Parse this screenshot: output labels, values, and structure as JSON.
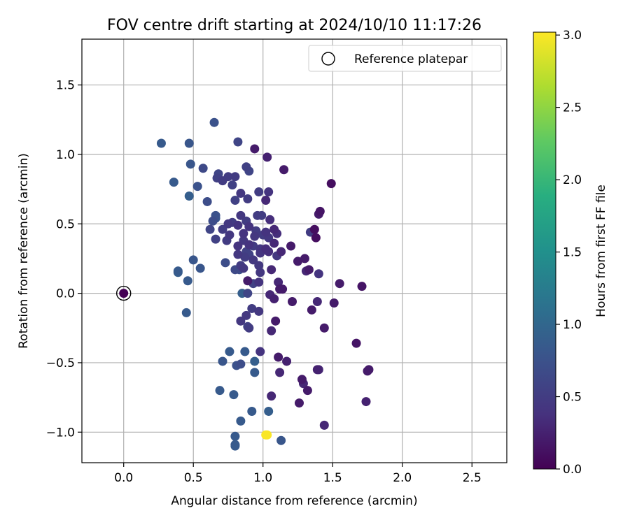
{
  "chart_data": {
    "type": "scatter",
    "title": "FOV centre drift starting at 2024/10/10 11:17:26",
    "xlabel": "Angular distance from reference (arcmin)",
    "ylabel": "Rotation from reference (arcmin)",
    "xlim": [
      -0.3,
      2.75
    ],
    "ylim": [
      -1.22,
      1.83
    ],
    "xticks": [
      "0.0",
      "0.5",
      "1.0",
      "1.5",
      "2.0",
      "2.5"
    ],
    "yticks": [
      "−1.0",
      "−0.5",
      "0.0",
      "0.5",
      "1.0",
      "1.5"
    ],
    "grid": true,
    "legend": {
      "location": "upper right",
      "entries": [
        {
          "label": "Reference platepar",
          "marker": "hollow-circle"
        }
      ]
    },
    "colorbar": {
      "label": "Hours from first FF file",
      "range": [
        0.0,
        3.02
      ],
      "ticks": [
        "0.0",
        "0.5",
        "1.0",
        "1.5",
        "2.0",
        "2.5",
        "3.0"
      ],
      "colormap": "viridis"
    },
    "reference_point": {
      "x": 0.0,
      "y": 0.0,
      "c": 0.0
    },
    "points": [
      [
        0.65,
        1.23,
        0.75
      ],
      [
        0.27,
        1.08,
        0.85
      ],
      [
        0.47,
        1.08,
        0.8
      ],
      [
        0.82,
        1.09,
        0.6
      ],
      [
        0.94,
        1.04,
        0.2
      ],
      [
        1.03,
        0.98,
        0.25
      ],
      [
        1.15,
        0.89,
        0.2
      ],
      [
        0.48,
        0.93,
        0.8
      ],
      [
        0.57,
        0.9,
        0.65
      ],
      [
        0.68,
        0.86,
        0.6
      ],
      [
        0.67,
        0.83,
        0.55
      ],
      [
        0.75,
        0.84,
        0.5
      ],
      [
        0.8,
        0.84,
        0.5
      ],
      [
        0.88,
        0.91,
        0.55
      ],
      [
        0.9,
        0.88,
        0.6
      ],
      [
        0.71,
        0.81,
        0.5
      ],
      [
        0.78,
        0.78,
        0.55
      ],
      [
        0.36,
        0.8,
        0.85
      ],
      [
        0.53,
        0.77,
        0.75
      ],
      [
        0.47,
        0.7,
        0.9
      ],
      [
        0.97,
        0.73,
        0.5
      ],
      [
        1.04,
        0.73,
        0.4
      ],
      [
        0.84,
        0.72,
        0.45
      ],
      [
        0.89,
        0.68,
        0.5
      ],
      [
        0.8,
        0.67,
        0.55
      ],
      [
        1.02,
        0.67,
        0.3
      ],
      [
        1.49,
        0.79,
        0.1
      ],
      [
        0.6,
        0.66,
        0.7
      ],
      [
        0.66,
        0.56,
        0.75
      ],
      [
        0.66,
        0.54,
        0.8
      ],
      [
        0.64,
        0.52,
        0.7
      ],
      [
        0.62,
        0.46,
        0.6
      ],
      [
        0.66,
        0.39,
        0.55
      ],
      [
        0.71,
        0.46,
        0.5
      ],
      [
        0.75,
        0.5,
        0.45
      ],
      [
        0.78,
        0.51,
        0.5
      ],
      [
        0.84,
        0.56,
        0.45
      ],
      [
        0.88,
        0.52,
        0.5
      ],
      [
        0.9,
        0.48,
        0.4
      ],
      [
        0.96,
        0.56,
        0.5
      ],
      [
        0.99,
        0.56,
        0.5
      ],
      [
        1.05,
        0.53,
        0.35
      ],
      [
        1.08,
        0.46,
        0.3
      ],
      [
        1.02,
        0.44,
        0.4
      ],
      [
        0.95,
        0.45,
        0.5
      ],
      [
        0.86,
        0.43,
        0.4
      ],
      [
        0.82,
        0.49,
        0.4
      ],
      [
        0.76,
        0.42,
        0.45
      ],
      [
        0.74,
        0.38,
        0.5
      ],
      [
        0.86,
        0.38,
        0.45
      ],
      [
        0.9,
        0.35,
        0.4
      ],
      [
        0.94,
        0.41,
        0.45
      ],
      [
        1.0,
        0.42,
        0.5
      ],
      [
        1.04,
        0.4,
        0.45
      ],
      [
        1.1,
        0.43,
        0.35
      ],
      [
        1.08,
        0.36,
        0.3
      ],
      [
        1.02,
        0.32,
        0.35
      ],
      [
        0.98,
        0.32,
        0.45
      ],
      [
        0.93,
        0.34,
        0.5
      ],
      [
        0.88,
        0.3,
        0.55
      ],
      [
        0.82,
        0.34,
        0.4
      ],
      [
        0.82,
        0.28,
        0.45
      ],
      [
        0.87,
        0.26,
        0.5
      ],
      [
        0.9,
        0.28,
        0.55
      ],
      [
        0.93,
        0.24,
        0.45
      ],
      [
        0.98,
        0.29,
        0.4
      ],
      [
        1.04,
        0.3,
        0.35
      ],
      [
        1.1,
        0.27,
        0.45
      ],
      [
        1.13,
        0.3,
        0.3
      ],
      [
        1.2,
        0.34,
        0.2
      ],
      [
        1.37,
        0.46,
        0.1
      ],
      [
        1.41,
        0.59,
        0.15
      ],
      [
        1.4,
        0.57,
        0.2
      ],
      [
        1.34,
        0.44,
        0.5
      ],
      [
        1.38,
        0.4,
        0.1
      ],
      [
        1.3,
        0.25,
        0.2
      ],
      [
        1.25,
        0.23,
        0.2
      ],
      [
        1.31,
        0.16,
        0.3
      ],
      [
        1.33,
        0.17,
        0.2
      ],
      [
        1.4,
        0.14,
        0.4
      ],
      [
        1.55,
        0.07,
        0.2
      ],
      [
        1.71,
        0.05,
        0.15
      ],
      [
        1.11,
        0.08,
        0.3
      ],
      [
        1.12,
        0.03,
        0.2
      ],
      [
        1.14,
        0.03,
        0.2
      ],
      [
        1.05,
        -0.01,
        0.3
      ],
      [
        1.08,
        -0.04,
        0.25
      ],
      [
        1.21,
        -0.06,
        0.2
      ],
      [
        1.39,
        -0.06,
        0.3
      ],
      [
        1.51,
        -0.07,
        0.2
      ],
      [
        0.73,
        0.22,
        0.7
      ],
      [
        0.8,
        0.17,
        0.65
      ],
      [
        0.83,
        0.17,
        0.7
      ],
      [
        0.84,
        0.2,
        0.5
      ],
      [
        0.86,
        0.18,
        0.45
      ],
      [
        0.97,
        0.2,
        0.45
      ],
      [
        0.98,
        0.15,
        0.45
      ],
      [
        1.06,
        0.17,
        0.3
      ],
      [
        0.5,
        0.24,
        0.8
      ],
      [
        0.55,
        0.18,
        0.8
      ],
      [
        0.39,
        0.16,
        0.85
      ],
      [
        0.39,
        0.15,
        0.9
      ],
      [
        0.46,
        0.09,
        0.85
      ],
      [
        0.93,
        0.07,
        0.55
      ],
      [
        0.89,
        0.09,
        0.2
      ],
      [
        0.97,
        0.08,
        0.4
      ],
      [
        0.85,
        0.0,
        0.9
      ],
      [
        0.89,
        0.0,
        0.6
      ],
      [
        0.92,
        -0.11,
        0.5
      ],
      [
        0.97,
        -0.13,
        0.45
      ],
      [
        0.88,
        -0.16,
        0.45
      ],
      [
        0.84,
        -0.2,
        0.45
      ],
      [
        0.89,
        -0.24,
        0.55
      ],
      [
        0.9,
        -0.25,
        0.5
      ],
      [
        1.06,
        -0.27,
        0.3
      ],
      [
        1.09,
        -0.2,
        0.2
      ],
      [
        1.35,
        -0.12,
        0.2
      ],
      [
        1.44,
        -0.25,
        0.2
      ],
      [
        1.67,
        -0.36,
        0.15
      ],
      [
        0.45,
        -0.14,
        0.85
      ],
      [
        0.76,
        -0.42,
        0.85
      ],
      [
        0.71,
        -0.49,
        0.8
      ],
      [
        0.81,
        -0.52,
        0.75
      ],
      [
        0.84,
        -0.51,
        0.7
      ],
      [
        0.87,
        -0.42,
        0.85
      ],
      [
        0.94,
        -0.49,
        0.9
      ],
      [
        0.94,
        -0.57,
        0.85
      ],
      [
        0.98,
        -0.42,
        0.4
      ],
      [
        1.11,
        -0.46,
        0.2
      ],
      [
        1.17,
        -0.49,
        0.25
      ],
      [
        1.12,
        -0.57,
        0.3
      ],
      [
        1.39,
        -0.55,
        0.25
      ],
      [
        1.4,
        -0.55,
        0.3
      ],
      [
        1.76,
        -0.55,
        0.2
      ],
      [
        1.75,
        -0.56,
        0.2
      ],
      [
        1.28,
        -0.62,
        0.2
      ],
      [
        1.29,
        -0.65,
        0.3
      ],
      [
        1.32,
        -0.7,
        0.2
      ],
      [
        1.26,
        -0.79,
        0.2
      ],
      [
        1.74,
        -0.78,
        0.25
      ],
      [
        1.06,
        -0.74,
        0.3
      ],
      [
        1.44,
        -0.95,
        0.3
      ],
      [
        0.69,
        -0.7,
        0.85
      ],
      [
        0.79,
        -0.73,
        0.85
      ],
      [
        0.92,
        -0.85,
        0.85
      ],
      [
        1.04,
        -0.85,
        0.9
      ],
      [
        0.84,
        -0.92,
        0.85
      ],
      [
        0.8,
        -1.03,
        0.85
      ],
      [
        0.8,
        -1.1,
        0.85
      ],
      [
        0.8,
        -1.09,
        0.85
      ],
      [
        1.13,
        -1.06,
        0.8
      ],
      [
        1.03,
        -1.02,
        3.0
      ],
      [
        1.02,
        -1.02,
        3.0
      ]
    ]
  }
}
